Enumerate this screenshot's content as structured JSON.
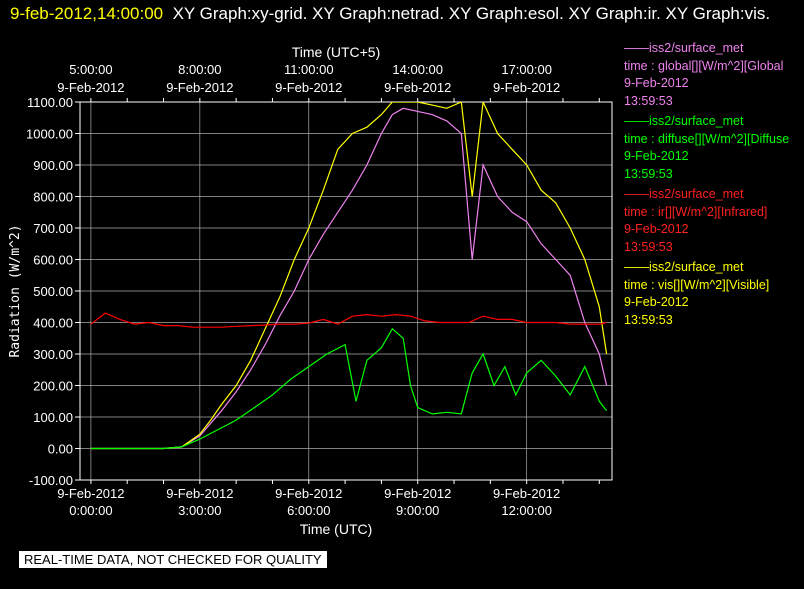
{
  "header": {
    "timestamp": "9-feb-2012,14:00:00",
    "graphs": "XY Graph:xy-grid.  XY Graph:netrad.  XY Graph:esol.  XY Graph:ir.  XY Graph:vis."
  },
  "legend": [
    {
      "source": "——iss2/surface_met",
      "field": "time : global[][W/m^2][Global",
      "date": "9-Feb-2012",
      "time": "13:59:53",
      "color": "#ee82ee"
    },
    {
      "source": "——iss2/surface_met",
      "field": "time : diffuse[][W/m^2][Diffuse",
      "date": "9-Feb-2012",
      "time": "13:59:53",
      "color": "#00ff00"
    },
    {
      "source": "——iss2/surface_met",
      "field": "time : ir[][W/m^2][Infrared]",
      "date": "9-Feb-2012",
      "time": "13:59:53",
      "color": "#ff0000"
    },
    {
      "source": "——iss2/surface_met",
      "field": "time : vis[][W/m^2][Visible]",
      "date": "9-Feb-2012",
      "time": "13:59:53",
      "color": "#ffff00"
    }
  ],
  "notice": "REAL-TIME DATA, NOT CHECKED FOR QUALITY",
  "chart_data": {
    "type": "line",
    "xlabel": "Time (UTC)",
    "x2label": "Time (UTC+5)",
    "ylabel": "Radiation (W/m^2)",
    "xlim": [
      -0.3,
      14.35
    ],
    "ylim": [
      -100,
      1100
    ],
    "y_ticks": [
      -100,
      0,
      100,
      200,
      300,
      400,
      500,
      600,
      700,
      800,
      900,
      1000,
      1100
    ],
    "y_tick_labels": [
      "-100.00",
      "0.00",
      "100.00",
      "200.00",
      "300.00",
      "400.00",
      "500.00",
      "600.00",
      "700.00",
      "800.00",
      "900.00",
      "1000.00",
      "1100.00"
    ],
    "x_ticks": [
      0,
      3,
      6,
      9,
      12
    ],
    "x_tick_labels": [
      [
        "9-Feb-2012",
        "0:00:00"
      ],
      [
        "9-Feb-2012",
        "3:00:00"
      ],
      [
        "9-Feb-2012",
        "6:00:00"
      ],
      [
        "9-Feb-2012",
        "9:00:00"
      ],
      [
        "9-Feb-2012",
        "12:00:00"
      ]
    ],
    "x2_ticks": [
      0,
      3,
      6,
      9,
      12
    ],
    "x2_tick_labels": [
      [
        "5:00:00",
        "9-Feb-2012"
      ],
      [
        "8:00:00",
        "9-Feb-2012"
      ],
      [
        "11:00:00",
        "9-Feb-2012"
      ],
      [
        "14:00:00",
        "9-Feb-2012"
      ],
      [
        "17:00:00",
        "9-Feb-2012"
      ]
    ],
    "grid": true,
    "series": [
      {
        "name": "global",
        "color": "#ee82ee",
        "x": [
          0,
          2.0,
          2.5,
          3.0,
          3.3,
          3.6,
          4.0,
          4.4,
          4.8,
          5.2,
          5.6,
          6.0,
          6.4,
          6.8,
          7.2,
          7.6,
          8.0,
          8.3,
          8.6,
          9.0,
          9.4,
          9.8,
          10.2,
          10.5,
          10.8,
          11.2,
          11.6,
          12.0,
          12.4,
          12.8,
          13.2,
          13.6,
          14.0,
          14.2
        ],
        "y": [
          0,
          0,
          5,
          40,
          80,
          120,
          180,
          250,
          330,
          420,
          500,
          600,
          680,
          750,
          820,
          900,
          1000,
          1060,
          1080,
          1070,
          1060,
          1040,
          1000,
          600,
          900,
          800,
          750,
          720,
          650,
          600,
          550,
          400,
          300,
          200
        ]
      },
      {
        "name": "diffuse",
        "color": "#00ff00",
        "x": [
          0,
          2.0,
          2.5,
          3.0,
          3.5,
          4.0,
          4.5,
          5.0,
          5.5,
          6.0,
          6.5,
          7.0,
          7.3,
          7.6,
          8.0,
          8.3,
          8.6,
          8.8,
          9.0,
          9.4,
          9.8,
          10.2,
          10.5,
          10.8,
          11.1,
          11.4,
          11.7,
          12.0,
          12.4,
          12.8,
          13.2,
          13.6,
          14.0,
          14.2
        ],
        "y": [
          0,
          0,
          5,
          30,
          60,
          90,
          130,
          170,
          220,
          260,
          300,
          330,
          150,
          280,
          320,
          380,
          350,
          200,
          130,
          110,
          115,
          110,
          240,
          300,
          200,
          260,
          170,
          240,
          280,
          230,
          170,
          260,
          150,
          120
        ]
      },
      {
        "name": "ir",
        "color": "#ff0000",
        "x": [
          0,
          0.4,
          0.8,
          1.2,
          1.6,
          2.0,
          2.4,
          2.8,
          3.2,
          3.6,
          4.0,
          4.4,
          4.8,
          5.2,
          5.6,
          6.0,
          6.4,
          6.8,
          7.2,
          7.6,
          8.0,
          8.4,
          8.8,
          9.2,
          9.6,
          10.0,
          10.4,
          10.8,
          11.2,
          11.6,
          12.0,
          12.4,
          12.8,
          13.2,
          13.6,
          14.0,
          14.2
        ],
        "y": [
          395,
          430,
          410,
          395,
          400,
          390,
          390,
          385,
          385,
          385,
          388,
          390,
          392,
          395,
          395,
          398,
          410,
          395,
          420,
          425,
          420,
          425,
          420,
          405,
          400,
          400,
          400,
          420,
          410,
          410,
          400,
          400,
          400,
          395,
          395,
          395,
          400
        ]
      },
      {
        "name": "vis",
        "color": "#ffff00",
        "x": [
          0,
          2.0,
          2.5,
          3.0,
          3.3,
          3.6,
          4.0,
          4.4,
          4.8,
          5.2,
          5.6,
          6.0,
          6.4,
          6.8,
          7.2,
          7.6,
          8.0,
          8.3,
          8.6,
          9.0,
          9.4,
          9.8,
          10.2,
          10.5,
          10.8,
          11.2,
          11.6,
          12.0,
          12.4,
          12.8,
          13.2,
          13.6,
          14.0,
          14.2
        ],
        "y": [
          0,
          0,
          5,
          45,
          90,
          140,
          200,
          280,
          380,
          480,
          600,
          700,
          820,
          950,
          1000,
          1020,
          1060,
          1100,
          1100,
          1100,
          1090,
          1080,
          1100,
          800,
          1100,
          1000,
          950,
          900,
          820,
          780,
          700,
          600,
          450,
          300
        ]
      }
    ]
  }
}
